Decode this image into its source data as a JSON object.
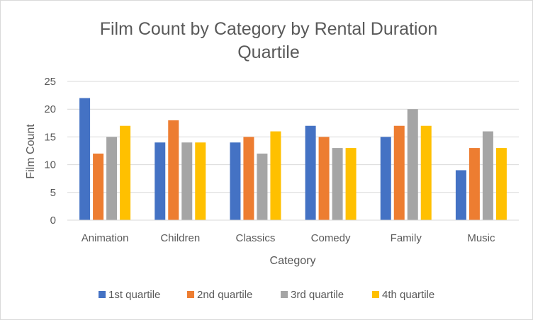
{
  "chart_data": {
    "type": "bar",
    "title_lines": [
      "Film Count by Category by Rental Duration",
      "Quartile"
    ],
    "xlabel": "Category",
    "ylabel": "Film Count",
    "categories": [
      "Animation",
      "Children",
      "Classics",
      "Comedy",
      "Family",
      "Music"
    ],
    "ylim": [
      0,
      25
    ],
    "yticks": [
      0,
      5,
      10,
      15,
      20,
      25
    ],
    "grid": true,
    "legend_position": "bottom",
    "series": [
      {
        "name": "1st quartile",
        "color": "#4472c4",
        "values": [
          22,
          14,
          14,
          17,
          15,
          9
        ]
      },
      {
        "name": "2nd quartile",
        "color": "#ed7d31",
        "values": [
          12,
          18,
          15,
          15,
          17,
          13
        ]
      },
      {
        "name": "3rd quartile",
        "color": "#a5a5a5",
        "values": [
          15,
          14,
          12,
          13,
          20,
          16
        ]
      },
      {
        "name": "4th quartile",
        "color": "#ffc000",
        "values": [
          17,
          14,
          16,
          13,
          17,
          13
        ]
      }
    ]
  }
}
